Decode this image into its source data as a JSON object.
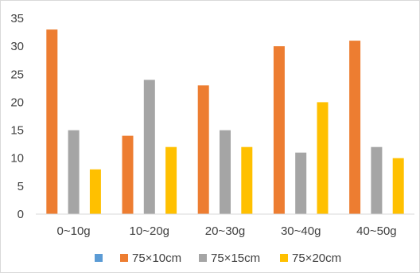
{
  "chart_data": {
    "type": "bar",
    "categories": [
      "0~10g",
      "10~20g",
      "20~30g",
      "30~40g",
      "40~50g"
    ],
    "series": [
      {
        "name": "",
        "color": "#5b9bd5",
        "values": [
          0,
          0,
          0,
          0,
          0
        ]
      },
      {
        "name": "75×10cm",
        "color": "#ed7d31",
        "values": [
          33,
          14,
          23,
          30,
          31
        ]
      },
      {
        "name": "75×15cm",
        "color": "#a5a5a5",
        "values": [
          15,
          24,
          15,
          11,
          12
        ]
      },
      {
        "name": "75×20cm",
        "color": "#ffc000",
        "values": [
          8,
          12,
          12,
          20,
          10
        ]
      }
    ],
    "yticks": [
      "0",
      "5",
      "10",
      "15",
      "20",
      "25",
      "30",
      "35"
    ],
    "ylim": [
      0,
      35
    ],
    "grid": false,
    "legend_position": "bottom"
  }
}
